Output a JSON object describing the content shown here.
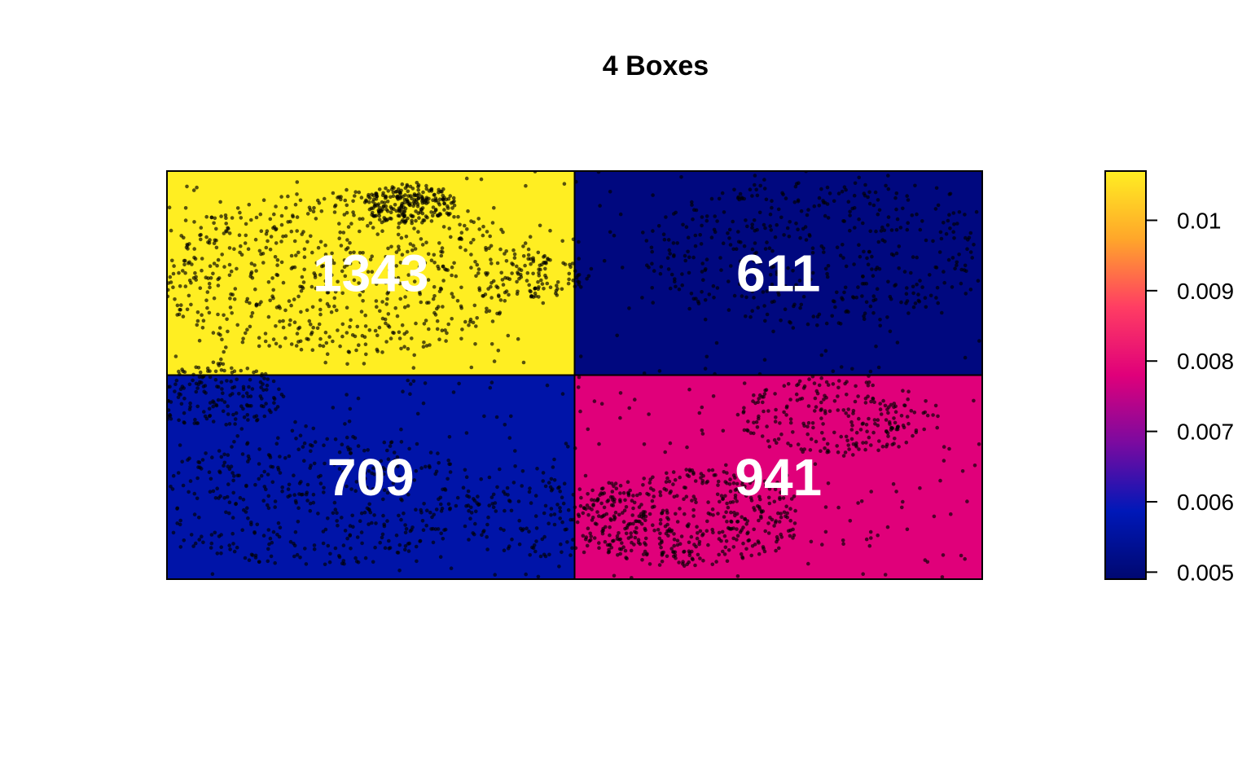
{
  "chart_data": {
    "type": "heatmap",
    "title": "4 Boxes",
    "grid": {
      "rows": 2,
      "cols": 2
    },
    "cells": [
      {
        "row": 0,
        "col": 0,
        "count": "1343",
        "density": 0.0107,
        "color": "#FFEE22"
      },
      {
        "row": 0,
        "col": 1,
        "count": "611",
        "density": 0.0049,
        "color": "#00087F"
      },
      {
        "row": 1,
        "col": 0,
        "count": "709",
        "density": 0.0056,
        "color": "#0014A8"
      },
      {
        "row": 1,
        "col": 1,
        "count": "941",
        "density": 0.0075,
        "color": "#E0007A"
      }
    ],
    "colorbar": {
      "range": [
        0.0049,
        0.0107
      ],
      "ticks": [
        {
          "value": 0.005,
          "label": "0.005"
        },
        {
          "value": 0.006,
          "label": "0.006"
        },
        {
          "value": 0.007,
          "label": "0.007"
        },
        {
          "value": 0.008,
          "label": "0.008"
        },
        {
          "value": 0.009,
          "label": "0.009"
        },
        {
          "value": 0.01,
          "label": "0.01"
        }
      ],
      "gradient": [
        "#000870",
        "#0018B8",
        "#7A0AA0",
        "#E0007A",
        "#FF3D63",
        "#FFA62A",
        "#FFEE22"
      ]
    },
    "points": {
      "color": "#000000",
      "opacity": 0.65
    }
  }
}
